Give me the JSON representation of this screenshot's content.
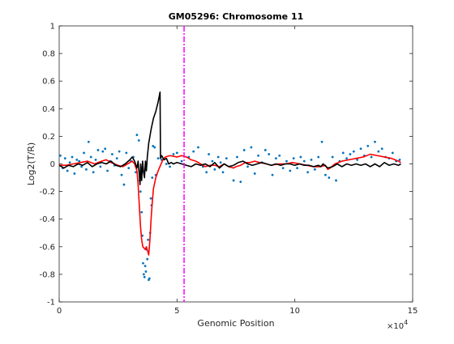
{
  "chart_data": {
    "type": "scatter",
    "title": "GM05296: Chromosome 11",
    "xlabel": "Genomic Position",
    "ylabel": "Log2(T/R)",
    "x_multiplier_label": "×10",
    "x_multiplier_exponent": "4",
    "xlim": [
      0,
      150000
    ],
    "ylim": [
      -1,
      1
    ],
    "xticks": [
      0,
      50000,
      100000,
      150000
    ],
    "xtick_labels": [
      "0",
      "5",
      "10",
      "15"
    ],
    "yticks": [
      -1,
      -0.8,
      -0.6,
      -0.4,
      -0.2,
      0,
      0.2,
      0.4,
      0.6,
      0.8,
      1
    ],
    "ytick_labels": [
      "-1",
      "-0.8",
      "-0.6",
      "-0.4",
      "-0.2",
      "0",
      "0.2",
      "0.4",
      "0.6",
      "0.8",
      "1"
    ],
    "grid": false,
    "colors": {
      "points": "#0072BD",
      "smoothed": "#FF0000",
      "raw": "#000000",
      "marker_line": "#FF00FF"
    },
    "vertical_line_x": 53000,
    "series": [
      {
        "type": "scatter",
        "color": "#0072BD",
        "points": [
          [
            500,
            0.06
          ],
          [
            1500,
            -0.03
          ],
          [
            2500,
            0.04
          ],
          [
            3500,
            -0.05
          ],
          [
            4500,
            0.01
          ],
          [
            5500,
            0.05
          ],
          [
            6500,
            -0.07
          ],
          [
            7500,
            0.03
          ],
          [
            8500,
            0.02
          ],
          [
            9500,
            -0.02
          ],
          [
            10500,
            0.08
          ],
          [
            11500,
            -0.04
          ],
          [
            12500,
            0.16
          ],
          [
            13500,
            0.05
          ],
          [
            14500,
            -0.06
          ],
          [
            15500,
            0.03
          ],
          [
            16500,
            0.1
          ],
          [
            17500,
            -0.02
          ],
          [
            18500,
            0.09
          ],
          [
            19500,
            0.11
          ],
          [
            20500,
            -0.05
          ],
          [
            21500,
            0.02
          ],
          [
            22500,
            0.07
          ],
          [
            23500,
            -0.01
          ],
          [
            24500,
            0.04
          ],
          [
            25500,
            0.09
          ],
          [
            26500,
            -0.08
          ],
          [
            27500,
            -0.15
          ],
          [
            28500,
            0.08
          ],
          [
            29500,
            -0.03
          ],
          [
            30500,
            0.02
          ],
          [
            31500,
            0.05
          ],
          [
            32500,
            -0.06
          ],
          [
            33000,
            0.21
          ],
          [
            33800,
            0.17
          ],
          [
            34200,
            -0.12
          ],
          [
            34500,
            -0.2
          ],
          [
            35000,
            -0.35
          ],
          [
            35300,
            -0.52
          ],
          [
            35600,
            -0.72
          ],
          [
            35900,
            -0.8
          ],
          [
            36200,
            -0.82
          ],
          [
            36500,
            -0.74
          ],
          [
            36800,
            -0.78
          ],
          [
            37100,
            -0.62
          ],
          [
            37400,
            -0.69
          ],
          [
            37700,
            -0.55
          ],
          [
            38000,
            -0.84
          ],
          [
            38300,
            -0.83
          ],
          [
            38600,
            -0.5
          ],
          [
            38900,
            -0.25
          ],
          [
            39200,
            -0.3
          ],
          [
            39500,
            -0.1
          ],
          [
            39800,
            0.13
          ],
          [
            40500,
            0.12
          ],
          [
            41000,
            -0.08
          ],
          [
            42000,
            0.04
          ],
          [
            43500,
            0.03
          ],
          [
            45500,
            0.0
          ],
          [
            47000,
            -0.02
          ],
          [
            48500,
            0.07
          ],
          [
            50000,
            0.08
          ],
          [
            52000,
            0.02
          ],
          [
            55000,
            0.05
          ],
          [
            57000,
            0.09
          ],
          [
            59000,
            0.12
          ],
          [
            61000,
            -0.02
          ],
          [
            62500,
            -0.06
          ],
          [
            63500,
            0.07
          ],
          [
            65000,
            0.02
          ],
          [
            66000,
            -0.04
          ],
          [
            67500,
            0.05
          ],
          [
            68500,
            0.01
          ],
          [
            69500,
            -0.06
          ],
          [
            71000,
            0.04
          ],
          [
            72500,
            -0.02
          ],
          [
            74000,
            -0.12
          ],
          [
            75500,
            0.05
          ],
          [
            77000,
            -0.13
          ],
          [
            78500,
            0.1
          ],
          [
            80000,
            -0.02
          ],
          [
            81500,
            0.12
          ],
          [
            83000,
            -0.07
          ],
          [
            84500,
            0.06
          ],
          [
            86000,
            0.01
          ],
          [
            87500,
            0.1
          ],
          [
            89000,
            0.07
          ],
          [
            90500,
            -0.08
          ],
          [
            92000,
            0.04
          ],
          [
            93500,
            0.06
          ],
          [
            95000,
            -0.03
          ],
          [
            96500,
            0.02
          ],
          [
            98000,
            -0.05
          ],
          [
            99500,
            0.04
          ],
          [
            101000,
            -0.03
          ],
          [
            102500,
            0.05
          ],
          [
            104000,
            0.02
          ],
          [
            105500,
            -0.06
          ],
          [
            107000,
            0.03
          ],
          [
            108500,
            -0.04
          ],
          [
            110000,
            0.05
          ],
          [
            111500,
            0.16
          ],
          [
            113000,
            -0.08
          ],
          [
            114500,
            -0.1
          ],
          [
            116000,
            0.05
          ],
          [
            117500,
            -0.12
          ],
          [
            119000,
            0.02
          ],
          [
            120500,
            0.08
          ],
          [
            122000,
            0.04
          ],
          [
            123500,
            0.07
          ],
          [
            125000,
            0.09
          ],
          [
            126500,
            0.03
          ],
          [
            128000,
            0.11
          ],
          [
            129500,
            0.06
          ],
          [
            131000,
            0.13
          ],
          [
            132500,
            0.05
          ],
          [
            134000,
            0.16
          ],
          [
            135500,
            0.09
          ],
          [
            137000,
            0.11
          ],
          [
            138500,
            0.05
          ],
          [
            140000,
            0.04
          ],
          [
            141500,
            0.08
          ],
          [
            143000,
            0.02
          ],
          [
            144500,
            0.03
          ]
        ]
      },
      {
        "type": "line",
        "color": "#FF0000",
        "points": [
          [
            0,
            -0.01
          ],
          [
            3000,
            -0.01
          ],
          [
            6000,
            0.0
          ],
          [
            9000,
            0.01
          ],
          [
            12000,
            0.02
          ],
          [
            15000,
            0.0
          ],
          [
            18000,
            0.02
          ],
          [
            20000,
            0.03
          ],
          [
            22000,
            0.01
          ],
          [
            25000,
            -0.01
          ],
          [
            27000,
            -0.02
          ],
          [
            29000,
            0.0
          ],
          [
            31000,
            0.02
          ],
          [
            32000,
            0.0
          ],
          [
            33000,
            -0.05
          ],
          [
            33500,
            -0.15
          ],
          [
            34000,
            -0.3
          ],
          [
            34500,
            -0.45
          ],
          [
            35000,
            -0.55
          ],
          [
            35500,
            -0.6
          ],
          [
            36000,
            -0.61
          ],
          [
            36500,
            -0.62
          ],
          [
            37000,
            -0.6
          ],
          [
            37500,
            -0.63
          ],
          [
            38000,
            -0.66
          ],
          [
            38500,
            -0.55
          ],
          [
            39000,
            -0.4
          ],
          [
            39500,
            -0.28
          ],
          [
            40000,
            -0.18
          ],
          [
            41000,
            -0.1
          ],
          [
            42000,
            -0.05
          ],
          [
            43000,
            -0.01
          ],
          [
            44000,
            0.03
          ],
          [
            45000,
            0.05
          ],
          [
            47000,
            0.06
          ],
          [
            50000,
            0.05
          ],
          [
            52000,
            0.06
          ],
          [
            54000,
            0.05
          ],
          [
            56000,
            0.03
          ],
          [
            58000,
            0.02
          ],
          [
            60000,
            0.0
          ],
          [
            62000,
            -0.02
          ],
          [
            64000,
            -0.01
          ],
          [
            66000,
            -0.01
          ],
          [
            68000,
            -0.02
          ],
          [
            70000,
            0.0
          ],
          [
            72000,
            -0.02
          ],
          [
            74000,
            -0.03
          ],
          [
            75000,
            -0.02
          ],
          [
            77000,
            -0.01
          ],
          [
            79000,
            0.01
          ],
          [
            81000,
            0.01
          ],
          [
            83000,
            0.02
          ],
          [
            85000,
            0.01
          ],
          [
            88000,
            0.0
          ],
          [
            90000,
            -0.01
          ],
          [
            93000,
            0.0
          ],
          [
            96000,
            0.0
          ],
          [
            99000,
            0.01
          ],
          [
            102000,
            0.0
          ],
          [
            105000,
            -0.01
          ],
          [
            108000,
            -0.02
          ],
          [
            111000,
            -0.02
          ],
          [
            113000,
            -0.01
          ],
          [
            114000,
            -0.04
          ],
          [
            115000,
            -0.03
          ],
          [
            117000,
            0.0
          ],
          [
            120000,
            0.02
          ],
          [
            123000,
            0.03
          ],
          [
            126000,
            0.04
          ],
          [
            129000,
            0.05
          ],
          [
            132000,
            0.07
          ],
          [
            135000,
            0.06
          ],
          [
            138000,
            0.05
          ],
          [
            141000,
            0.04
          ],
          [
            144000,
            0.02
          ],
          [
            145000,
            0.01
          ]
        ]
      },
      {
        "type": "line",
        "color": "#000000",
        "points": [
          [
            0,
            -0.01
          ],
          [
            2000,
            -0.03
          ],
          [
            4000,
            -0.01
          ],
          [
            6000,
            -0.02
          ],
          [
            8000,
            0.0
          ],
          [
            10000,
            -0.01
          ],
          [
            12000,
            0.01
          ],
          [
            14000,
            -0.02
          ],
          [
            16000,
            0.0
          ],
          [
            18000,
            0.01
          ],
          [
            20000,
            0.0
          ],
          [
            22000,
            0.02
          ],
          [
            24000,
            -0.01
          ],
          [
            26000,
            -0.02
          ],
          [
            28000,
            0.0
          ],
          [
            30000,
            0.03
          ],
          [
            31000,
            0.05
          ],
          [
            32000,
            0.02
          ],
          [
            33000,
            -0.03
          ],
          [
            33500,
            0.02
          ],
          [
            34000,
            -0.08
          ],
          [
            34300,
            -0.15
          ],
          [
            34600,
            0.0
          ],
          [
            35000,
            -0.12
          ],
          [
            35400,
            0.02
          ],
          [
            35800,
            -0.06
          ],
          [
            36200,
            -0.1
          ],
          [
            36600,
            0.02
          ],
          [
            37000,
            -0.05
          ],
          [
            37400,
            0.05
          ],
          [
            38000,
            0.15
          ],
          [
            39000,
            0.25
          ],
          [
            40000,
            0.33
          ],
          [
            41000,
            0.38
          ],
          [
            42000,
            0.45
          ],
          [
            42800,
            0.52
          ],
          [
            43000,
            0.04
          ],
          [
            43500,
            0.06
          ],
          [
            44500,
            0.03
          ],
          [
            45500,
            0.04
          ],
          [
            46500,
            0.0
          ],
          [
            47500,
            0.01
          ],
          [
            48500,
            0.0
          ],
          [
            50000,
            0.01
          ],
          [
            52000,
            0.0
          ],
          [
            54000,
            -0.01
          ],
          [
            56000,
            -0.02
          ],
          [
            58000,
            0.0
          ],
          [
            60000,
            -0.01
          ],
          [
            62000,
            0.0
          ],
          [
            64000,
            -0.02
          ],
          [
            66000,
            0.01
          ],
          [
            68000,
            -0.03
          ],
          [
            70000,
            0.0
          ],
          [
            72000,
            -0.02
          ],
          [
            74000,
            -0.01
          ],
          [
            76000,
            0.01
          ],
          [
            78000,
            0.02
          ],
          [
            80000,
            0.0
          ],
          [
            82000,
            -0.01
          ],
          [
            84000,
            0.0
          ],
          [
            86000,
            0.01
          ],
          [
            88000,
            0.0
          ],
          [
            90000,
            -0.01
          ],
          [
            92000,
            0.0
          ],
          [
            94000,
            -0.01
          ],
          [
            96000,
            0.0
          ],
          [
            98000,
            0.0
          ],
          [
            100000,
            -0.01
          ],
          [
            102000,
            0.0
          ],
          [
            104000,
            -0.01
          ],
          [
            106000,
            -0.01
          ],
          [
            108000,
            -0.02
          ],
          [
            110000,
            -0.01
          ],
          [
            111000,
            -0.02
          ],
          [
            112000,
            0.0
          ],
          [
            114000,
            -0.03
          ],
          [
            116000,
            -0.02
          ],
          [
            118000,
            0.0
          ],
          [
            120000,
            -0.02
          ],
          [
            122000,
            0.0
          ],
          [
            124000,
            -0.01
          ],
          [
            126000,
            0.0
          ],
          [
            128000,
            -0.01
          ],
          [
            130000,
            0.0
          ],
          [
            132000,
            -0.02
          ],
          [
            134000,
            0.0
          ],
          [
            136000,
            -0.02
          ],
          [
            138000,
            0.01
          ],
          [
            140000,
            -0.01
          ],
          [
            142000,
            0.0
          ],
          [
            144000,
            -0.01
          ],
          [
            145000,
            0.0
          ]
        ]
      }
    ]
  }
}
